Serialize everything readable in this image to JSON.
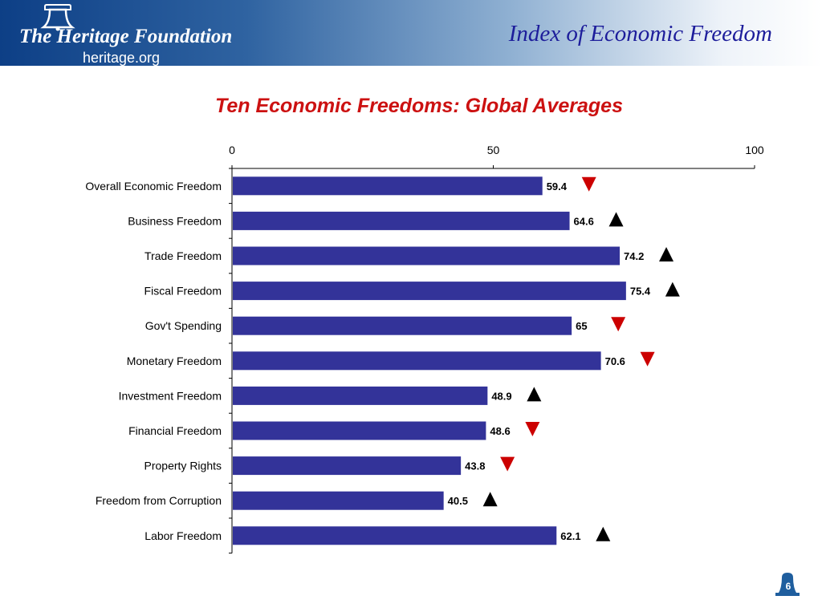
{
  "header": {
    "logo_text": "The Heritage Foundation",
    "logo_url": "heritage.org",
    "title": "Index of Economic Freedom"
  },
  "page_number": "6",
  "colors": {
    "bar": "#333399",
    "down_arrow": "#cc0000",
    "up_arrow": "#000000",
    "title": "#cc1111"
  },
  "chart_data": {
    "type": "bar",
    "orientation": "horizontal",
    "title": "Ten Economic Freedoms: Global Averages",
    "xlabel": "",
    "ylabel": "",
    "xlim": [
      0,
      100
    ],
    "ticks": [
      0,
      50,
      100
    ],
    "grid": false,
    "categories": [
      "Overall Economic Freedom",
      "Business Freedom",
      "Trade Freedom",
      "Fiscal Freedom",
      "Gov't Spending",
      "Monetary Freedom",
      "Investment Freedom",
      "Financial Freedom",
      "Property Rights",
      "Freedom from Corruption",
      "Labor Freedom"
    ],
    "values": [
      59.4,
      64.6,
      74.2,
      75.4,
      65,
      70.6,
      48.9,
      48.6,
      43.8,
      40.5,
      62.1
    ],
    "labels": [
      "59.4",
      "64.6",
      "74.2",
      "75.4",
      "65",
      "70.6",
      "48.9",
      "48.6",
      "43.8",
      "40.5",
      "62.1"
    ],
    "trend": [
      "down",
      "up",
      "up",
      "up",
      "down",
      "down",
      "up",
      "down",
      "down",
      "up",
      "up"
    ]
  }
}
